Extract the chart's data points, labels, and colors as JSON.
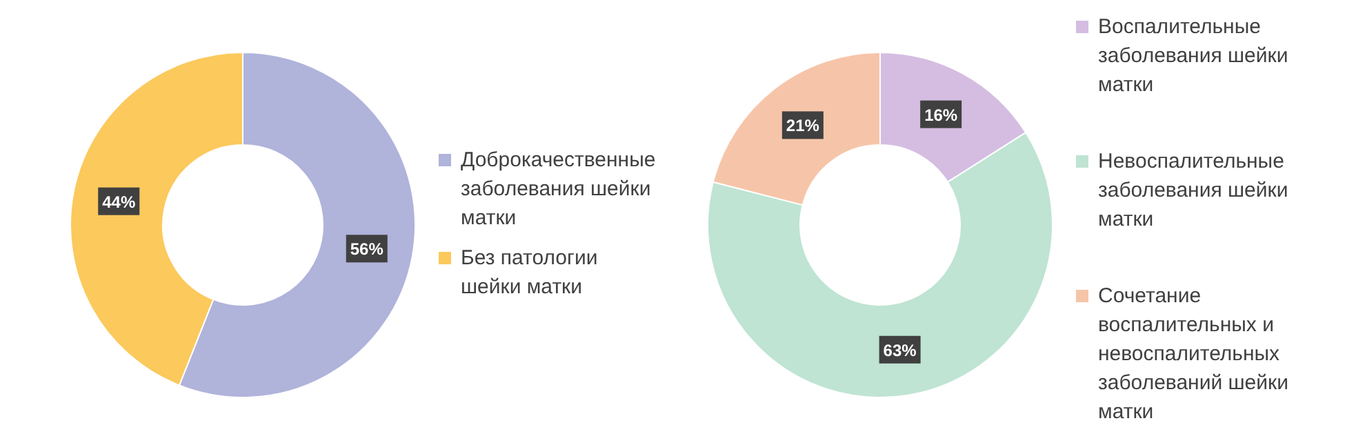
{
  "chart_data": [
    {
      "type": "donut",
      "categories": [
        "Доброкачественные заболевания шейки матки",
        "Без патологии шейки матки"
      ],
      "values": [
        56,
        44
      ],
      "colors": [
        "#b0b3da",
        "#fbc95c"
      ],
      "value_labels": [
        "56%",
        "44%"
      ],
      "legend": "right"
    },
    {
      "type": "donut",
      "categories": [
        "Воспалительные заболевания шейки матки",
        "Невоспалительные заболевания шейки матки",
        "Сочетание воспалительных и невоспалительных заболеваний шейки матки"
      ],
      "values": [
        16,
        63,
        21
      ],
      "colors": [
        "#d4bde1",
        "#bfe4d3",
        "#f6c5a9"
      ],
      "value_labels": [
        "16%",
        "63%",
        "21%"
      ],
      "legend": "right"
    }
  ]
}
